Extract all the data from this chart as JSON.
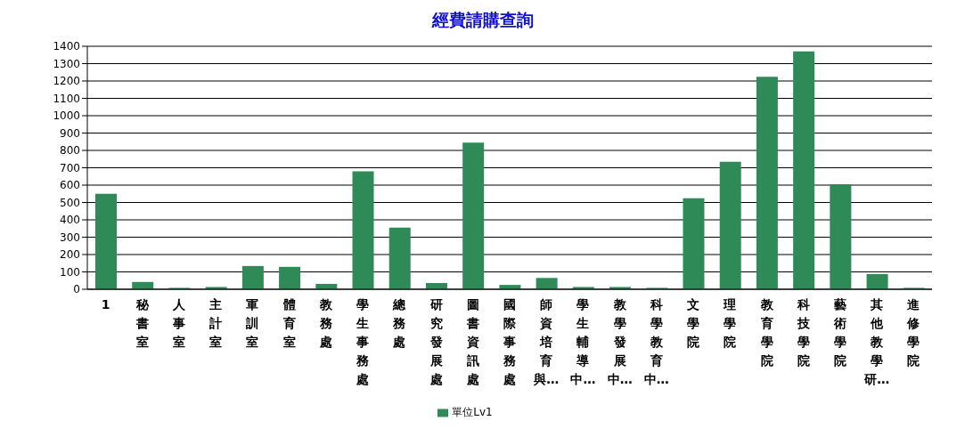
{
  "chart_data": {
    "type": "bar",
    "title": "經費請購查詢",
    "categories": [
      "1",
      "秘書室",
      "人事室",
      "主計室",
      "軍訓室",
      "體育室",
      "教務處",
      "學生事務處",
      "總務處",
      "研究發展處",
      "圖書資訊處",
      "國際事務處",
      "師資培育與…",
      "學生輔導中…",
      "教學發展中…",
      "科學教育中…",
      "文學院",
      "理學院",
      "教育學院",
      "科技學院",
      "藝術學院",
      "其他教學研…",
      "進修學院"
    ],
    "series": [
      {
        "name": "單位Lv1",
        "color": "#2e8b57",
        "values": [
          550,
          42,
          8,
          13,
          134,
          129,
          31,
          680,
          355,
          36,
          845,
          25,
          65,
          13,
          13,
          8,
          525,
          735,
          1225,
          1370,
          605,
          88,
          8
        ]
      }
    ],
    "ylim": [
      0,
      1400
    ],
    "yticks": [
      0,
      100,
      200,
      300,
      400,
      500,
      600,
      700,
      800,
      900,
      1000,
      1100,
      1200,
      1300,
      1400
    ],
    "grid": "y",
    "legend": "bottom"
  }
}
